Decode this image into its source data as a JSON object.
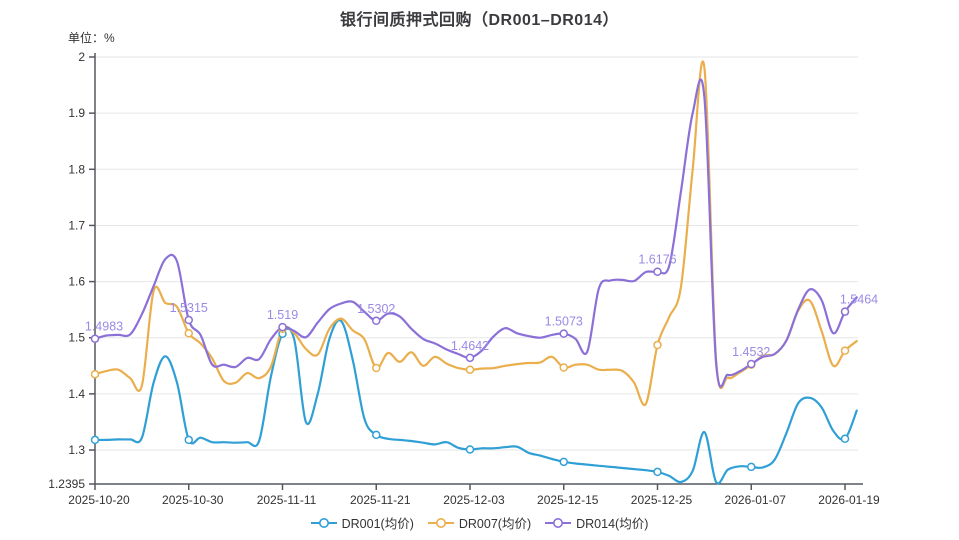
{
  "title": "银行间质押式回购（DR001–DR014）",
  "unit_label": "单位：%",
  "legend": {
    "items": [
      {
        "label": "DR001(均价)",
        "color": "#2f9fd6"
      },
      {
        "label": "DR007(均价)",
        "color": "#eaaf4c"
      },
      {
        "label": "DR014(均价)",
        "color": "#8b70d8"
      }
    ]
  },
  "colors": {
    "axis_line": "#55585e",
    "grid_line": "#e6e6e6",
    "tick_text": "#333333",
    "point_label": "#9b89e6",
    "background": "#ffffff"
  },
  "chart_data": {
    "type": "line",
    "title": "银行间质押式回购（DR001–DR014）",
    "ylabel": "单位：%",
    "grid": true,
    "legend_position": "bottom",
    "smooth": true,
    "y_axis": {
      "min": 1.2395,
      "max": 2,
      "tick_labels": [
        "2",
        "1.9",
        "1.8",
        "1.7",
        "1.6",
        "1.5",
        "1.4",
        "1.3",
        "1.2395"
      ],
      "tick_values": [
        2,
        1.9,
        1.8,
        1.7,
        1.6,
        1.5,
        1.4,
        1.3,
        1.2395
      ],
      "grid_values": [
        2,
        1.9,
        1.8,
        1.7,
        1.6,
        1.5,
        1.4,
        1.3
      ]
    },
    "x_axis": {
      "tick_labels": [
        "2025-10-20",
        "2025-10-30",
        "2025-11-11",
        "2025-11-21",
        "2025-12-03",
        "2025-12-15",
        "2025-12-25",
        "2026-01-07",
        "2026-01-19"
      ],
      "tick_indices": [
        0,
        8,
        16,
        24,
        32,
        40,
        48,
        56,
        64
      ]
    },
    "n_points": 66,
    "marker_indices": [
      0,
      8,
      16,
      24,
      32,
      40,
      48,
      56,
      64
    ],
    "series": [
      {
        "name": "DR001(均价)",
        "color": "#2f9fd6",
        "values": [
          1.318,
          1.318,
          1.319,
          1.319,
          1.322,
          1.42,
          1.467,
          1.42,
          1.318,
          1.322,
          1.314,
          1.314,
          1.313,
          1.314,
          1.316,
          1.43,
          1.507,
          1.497,
          1.35,
          1.4,
          1.498,
          1.53,
          1.46,
          1.355,
          1.327,
          1.32,
          1.318,
          1.316,
          1.313,
          1.31,
          1.314,
          1.304,
          1.301,
          1.303,
          1.303,
          1.305,
          1.306,
          1.295,
          1.29,
          1.284,
          1.279,
          1.276,
          1.274,
          1.272,
          1.27,
          1.268,
          1.266,
          1.264,
          1.261,
          1.254,
          1.243,
          1.263,
          1.332,
          1.243,
          1.265,
          1.271,
          1.27,
          1.269,
          1.283,
          1.33,
          1.383,
          1.393,
          1.376,
          1.334,
          1.32,
          1.37
        ]
      },
      {
        "name": "DR007(均价)",
        "color": "#eaaf4c",
        "values": [
          1.435,
          1.441,
          1.443,
          1.428,
          1.415,
          1.583,
          1.562,
          1.555,
          1.508,
          1.49,
          1.463,
          1.423,
          1.42,
          1.437,
          1.428,
          1.448,
          1.516,
          1.508,
          1.48,
          1.47,
          1.516,
          1.534,
          1.513,
          1.497,
          1.446,
          1.473,
          1.457,
          1.474,
          1.45,
          1.466,
          1.454,
          1.446,
          1.443,
          1.445,
          1.446,
          1.45,
          1.453,
          1.455,
          1.456,
          1.466,
          1.447,
          1.452,
          1.452,
          1.443,
          1.443,
          1.441,
          1.42,
          1.382,
          1.487,
          1.537,
          1.59,
          1.8,
          1.981,
          1.46,
          1.429,
          1.438,
          1.452,
          1.468,
          1.471,
          1.495,
          1.548,
          1.566,
          1.512,
          1.45,
          1.477,
          1.494
        ]
      },
      {
        "name": "DR014(均价)",
        "color": "#8b70d8",
        "label_color": "#9b89e6",
        "values": [
          1.4983,
          1.504,
          1.505,
          1.506,
          1.542,
          1.592,
          1.64,
          1.636,
          1.5315,
          1.505,
          1.452,
          1.452,
          1.448,
          1.464,
          1.462,
          1.497,
          1.519,
          1.512,
          1.501,
          1.527,
          1.551,
          1.561,
          1.564,
          1.546,
          1.5302,
          1.543,
          1.538,
          1.516,
          1.498,
          1.49,
          1.479,
          1.471,
          1.4642,
          1.477,
          1.502,
          1.517,
          1.508,
          1.503,
          1.5,
          1.505,
          1.5073,
          1.498,
          1.475,
          1.588,
          1.602,
          1.603,
          1.601,
          1.617,
          1.6176,
          1.628,
          1.76,
          1.9,
          1.928,
          1.455,
          1.434,
          1.44,
          1.4532,
          1.466,
          1.471,
          1.495,
          1.55,
          1.586,
          1.567,
          1.508,
          1.5464,
          1.572
        ],
        "labeled_points": [
          {
            "index": 0,
            "text": "1.4983",
            "dx": 9
          },
          {
            "index": 8,
            "text": "1.5315",
            "dx": 0
          },
          {
            "index": 16,
            "text": "1.519",
            "dx": 0
          },
          {
            "index": 24,
            "text": "1.5302",
            "dx": 0
          },
          {
            "index": 32,
            "text": "1.4642",
            "dx": 0
          },
          {
            "index": 40,
            "text": "1.5073",
            "dx": 0
          },
          {
            "index": 48,
            "text": "1.6176",
            "dx": 0
          },
          {
            "index": 56,
            "text": "1.4532",
            "dx": 0
          },
          {
            "index": 64,
            "text": "1.5464",
            "dx": 14
          }
        ]
      }
    ]
  }
}
